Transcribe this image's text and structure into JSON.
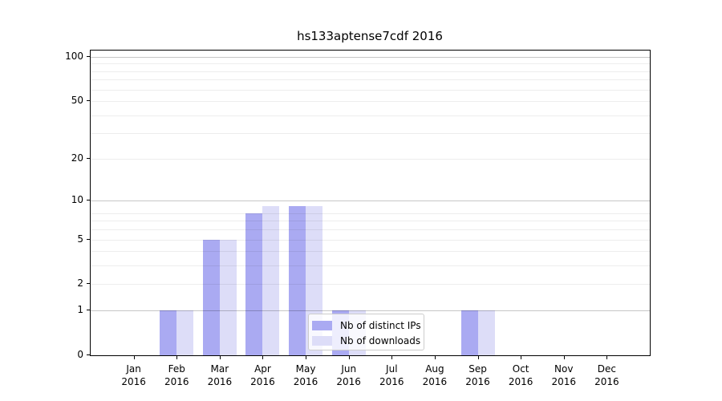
{
  "figure": {
    "background": "#ffffff"
  },
  "chart_data": {
    "type": "bar",
    "title": "hs133aptense7cdf 2016",
    "xlabel": "",
    "ylabel": "",
    "months": [
      "Jan",
      "Feb",
      "Mar",
      "Apr",
      "May",
      "Jun",
      "Jul",
      "Aug",
      "Sep",
      "Oct",
      "Nov",
      "Dec"
    ],
    "year_label": "2016",
    "series": [
      {
        "name": "Nb of distinct IPs",
        "color": "#aaaaf2",
        "values": [
          0,
          1,
          5,
          8,
          9,
          1,
          0,
          0,
          1,
          0,
          0,
          0
        ]
      },
      {
        "name": "Nb of downloads",
        "color": "#ddddf8",
        "values": [
          0,
          1,
          5,
          9,
          9,
          1,
          0,
          0,
          1,
          0,
          0,
          0
        ]
      }
    ],
    "y_scale": "log10(1+value)",
    "y_ticks": [
      0,
      1,
      2,
      5,
      10,
      20,
      50,
      100
    ],
    "y_axis_top_value": 110,
    "grid": {
      "major_values": [
        1,
        10,
        100
      ],
      "minor_values": [
        2,
        3,
        4,
        5,
        6,
        7,
        8,
        20,
        30,
        40,
        50,
        60,
        70,
        80,
        90
      ],
      "major_color": "#c8c8c8",
      "minor_color": "#ededed"
    },
    "legend": {
      "position": "lower-center",
      "entries": [
        "Nb of distinct IPs",
        "Nb of downloads"
      ]
    }
  }
}
